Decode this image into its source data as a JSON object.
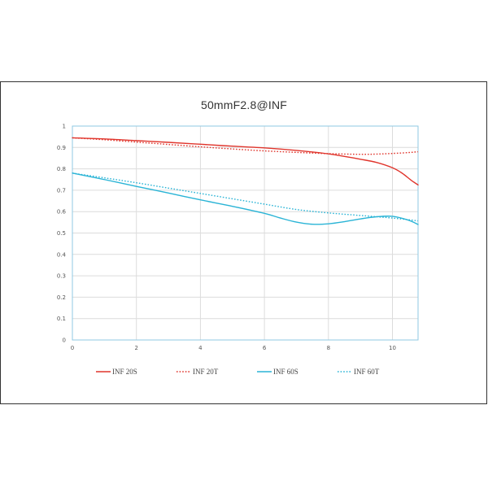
{
  "chart_data": {
    "type": "line",
    "title": "50mmF2.8@INF",
    "xlabel": "",
    "ylabel": "",
    "xlim": [
      0,
      10.8
    ],
    "ylim": [
      0,
      1
    ],
    "x_ticks": [
      0,
      2,
      4,
      6,
      8,
      10
    ],
    "y_ticks": [
      0,
      0.1,
      0.2,
      0.3,
      0.4,
      0.5,
      0.6,
      0.7,
      0.8,
      0.9,
      1
    ],
    "x_tick_labels": [
      "0",
      "2",
      "4",
      "6",
      "8",
      "10"
    ],
    "y_tick_labels": [
      "0",
      "0.1",
      "0.2",
      "0.3",
      "0.4",
      "0.5",
      "0.6",
      "0.7",
      "0.8",
      "0.9",
      "1"
    ],
    "grid": true,
    "legend_position": "bottom",
    "series": [
      {
        "name": "INF 20S",
        "color": "#e0352c",
        "style": "solid",
        "x": [
          0,
          1,
          2,
          3,
          4,
          5,
          6,
          7,
          8,
          8.5,
          9,
          9.5,
          10,
          10.3,
          10.6,
          10.8
        ],
        "y": [
          0.945,
          0.94,
          0.932,
          0.924,
          0.915,
          0.906,
          0.898,
          0.886,
          0.87,
          0.858,
          0.845,
          0.83,
          0.805,
          0.78,
          0.745,
          0.725
        ]
      },
      {
        "name": "INF 20T",
        "color": "#e0352c",
        "style": "dotted",
        "x": [
          0,
          1,
          2,
          3,
          4,
          5,
          6,
          7,
          8,
          9,
          9.5,
          10,
          10.5,
          10.8
        ],
        "y": [
          0.945,
          0.936,
          0.925,
          0.914,
          0.903,
          0.893,
          0.884,
          0.877,
          0.871,
          0.868,
          0.869,
          0.872,
          0.876,
          0.88
        ]
      },
      {
        "name": "INF 60S",
        "color": "#2ab4d6",
        "style": "solid",
        "x": [
          0,
          1,
          2,
          3,
          4,
          5,
          6,
          6.5,
          7,
          7.5,
          8,
          8.5,
          9,
          9.5,
          10,
          10.5,
          10.8
        ],
        "y": [
          0.78,
          0.75,
          0.718,
          0.687,
          0.655,
          0.625,
          0.592,
          0.57,
          0.551,
          0.541,
          0.543,
          0.553,
          0.566,
          0.576,
          0.578,
          0.56,
          0.54
        ]
      },
      {
        "name": "INF 60T",
        "color": "#2ab4d6",
        "style": "dotted",
        "x": [
          0,
          1,
          2,
          3,
          4,
          5,
          6,
          7,
          8,
          9,
          10,
          10.8
        ],
        "y": [
          0.78,
          0.758,
          0.735,
          0.71,
          0.685,
          0.66,
          0.635,
          0.61,
          0.594,
          0.582,
          0.57,
          0.557
        ]
      }
    ]
  }
}
